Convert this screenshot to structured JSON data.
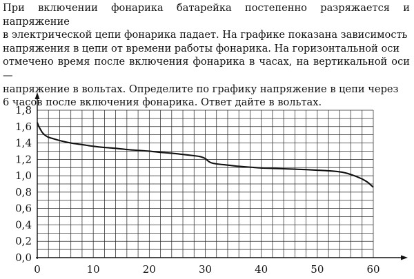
{
  "problem": {
    "lines": [
      "При включении фонарика батарейка постепенно разряжается и напряжение",
      "в электрической цепи фонарика падает. На графике показана зависимость",
      "напряжения в цепи от времени работы фонарика. На горизонтальной оси",
      "отмечено время после включения фонарика в часах, на вертикальной оси —",
      "напряжение в вольтах. Определите по графику напряжение в цепи через",
      "6 часов после включения фонарика. Ответ дайте в вольтах."
    ]
  },
  "chart_data": {
    "type": "line",
    "xlabel": "",
    "ylabel": "",
    "xlim": [
      0,
      60
    ],
    "ylim": [
      0,
      1.8
    ],
    "grid": true,
    "x_minor_step": 2,
    "y_minor_step": 0.1,
    "x_tick_values": [
      0,
      10,
      20,
      30,
      40,
      50,
      60
    ],
    "x_tick_labels": [
      "0",
      "10",
      "20",
      "30",
      "40",
      "50",
      "60"
    ],
    "y_tick_values": [
      0,
      0.2,
      0.4,
      0.6,
      0.8,
      1.0,
      1.2,
      1.4,
      1.6,
      1.8
    ],
    "y_tick_labels": [
      "0,0",
      "0,2",
      "0,4",
      "0,6",
      "0,8",
      "1,0",
      "1,2",
      "1,4",
      "1,6",
      "1,8"
    ],
    "series": [
      {
        "color": "#111111",
        "x": [
          0,
          0.3,
          0.7,
          1,
          1.5,
          2,
          3,
          4,
          6,
          8,
          10,
          12,
          14,
          16,
          18,
          20,
          22,
          24,
          26,
          28,
          29,
          29.5,
          30,
          30.5,
          31,
          32,
          34,
          36,
          38,
          40,
          42,
          44,
          46,
          48,
          50,
          52,
          54,
          55,
          56,
          57,
          58,
          59,
          59.5,
          60
        ],
        "y": [
          1.65,
          1.6,
          1.55,
          1.52,
          1.49,
          1.47,
          1.45,
          1.43,
          1.4,
          1.38,
          1.36,
          1.345,
          1.335,
          1.32,
          1.31,
          1.3,
          1.285,
          1.275,
          1.26,
          1.245,
          1.235,
          1.225,
          1.21,
          1.18,
          1.16,
          1.145,
          1.13,
          1.115,
          1.105,
          1.095,
          1.09,
          1.085,
          1.08,
          1.075,
          1.068,
          1.06,
          1.048,
          1.035,
          1.015,
          0.99,
          0.96,
          0.92,
          0.89,
          0.86
        ]
      }
    ]
  }
}
